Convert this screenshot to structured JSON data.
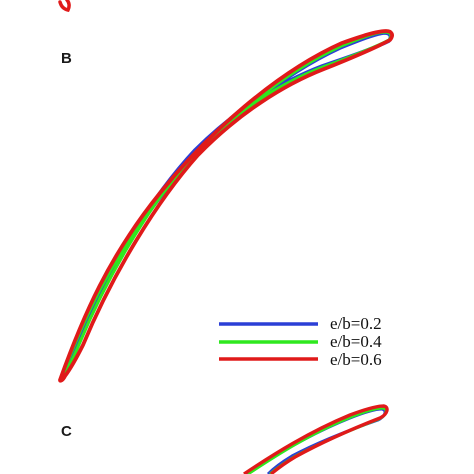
{
  "panels": [
    {
      "label": "B"
    },
    {
      "label": "C"
    }
  ],
  "legend": {
    "entries": [
      {
        "label": "e/b=0.2",
        "color": "#2b3fd6"
      },
      {
        "label": "e/b=0.4",
        "color": "#2ee81e"
      },
      {
        "label": "e/b=0.6",
        "color": "#e01a1a"
      }
    ]
  },
  "colors": {
    "blue": "#2b3fd6",
    "green": "#2ee81e",
    "red": "#e01a1a",
    "background": "#ffffff"
  }
}
